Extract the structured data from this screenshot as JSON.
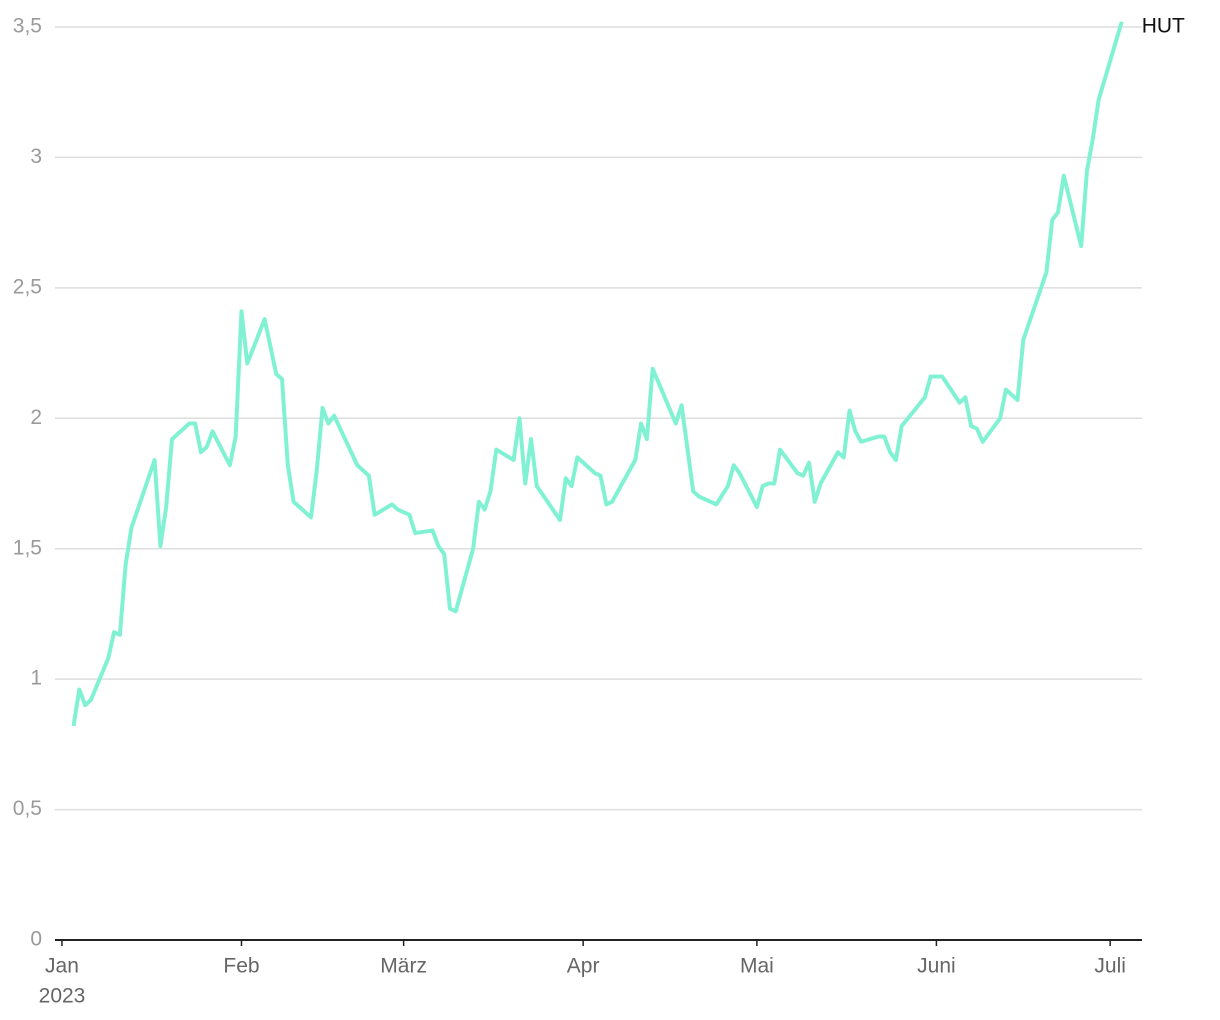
{
  "chart_data": {
    "type": "line",
    "x": [
      2,
      3,
      4,
      5,
      8,
      9,
      10,
      11,
      12,
      16,
      17,
      18,
      19,
      22,
      23,
      24,
      25,
      26,
      29,
      30,
      31,
      32,
      35,
      37,
      38,
      39,
      40,
      43,
      44,
      45,
      46,
      47,
      51,
      53,
      54,
      57,
      58,
      60,
      61,
      64,
      65,
      66,
      67,
      68,
      71,
      72,
      73,
      74,
      75,
      78,
      79,
      80,
      81,
      82,
      86,
      87,
      88,
      89,
      92,
      93,
      94,
      95,
      99,
      100,
      101,
      102,
      106,
      107,
      109,
      110,
      113,
      115,
      116,
      117,
      120,
      121,
      122,
      123,
      124,
      127,
      128,
      129,
      130,
      131,
      134,
      135,
      136,
      137,
      138,
      141,
      142,
      143,
      144,
      145,
      149,
      150,
      152,
      155,
      156,
      157,
      158,
      159,
      162,
      163,
      165,
      166,
      170,
      171,
      172,
      173,
      176,
      177,
      178,
      179,
      183
    ],
    "series": [
      {
        "name": "HUT",
        "color": "#80f2d3",
        "values": [
          0.82,
          0.96,
          0.9,
          0.92,
          1.08,
          1.18,
          1.17,
          1.44,
          1.58,
          1.84,
          1.51,
          1.66,
          1.92,
          1.98,
          1.98,
          1.87,
          1.89,
          1.95,
          1.82,
          1.93,
          2.41,
          2.21,
          2.38,
          2.17,
          2.15,
          1.82,
          1.68,
          1.62,
          1.8,
          2.04,
          1.98,
          2.01,
          1.82,
          1.78,
          1.63,
          1.67,
          1.65,
          1.63,
          1.56,
          1.57,
          1.51,
          1.48,
          1.27,
          1.26,
          1.5,
          1.68,
          1.65,
          1.72,
          1.88,
          1.84,
          2.0,
          1.75,
          1.92,
          1.74,
          1.61,
          1.77,
          1.74,
          1.85,
          1.79,
          1.78,
          1.67,
          1.68,
          1.84,
          1.98,
          1.92,
          2.19,
          1.98,
          2.05,
          1.72,
          1.7,
          1.67,
          1.74,
          1.82,
          1.79,
          1.66,
          1.74,
          1.75,
          1.75,
          1.88,
          1.79,
          1.78,
          1.83,
          1.68,
          1.75,
          1.87,
          1.85,
          2.03,
          1.95,
          1.91,
          1.93,
          1.93,
          1.87,
          1.84,
          1.97,
          2.08,
          2.16,
          2.16,
          2.06,
          2.08,
          1.97,
          1.96,
          1.91,
          2.0,
          2.11,
          2.07,
          2.3,
          2.56,
          2.76,
          2.79,
          2.93,
          2.66,
          2.95,
          3.07,
          3.22,
          3.52
        ]
      }
    ],
    "xlim": [
      -1.2,
      186.5
    ],
    "xticks": [
      {
        "value": 0,
        "label": "Jan"
      },
      {
        "value": 31,
        "label": "Feb"
      },
      {
        "value": 59,
        "label": "März"
      },
      {
        "value": 90,
        "label": "Apr"
      },
      {
        "value": 120,
        "label": "Mai"
      },
      {
        "value": 151,
        "label": "Juni"
      },
      {
        "value": 181,
        "label": "Juli"
      }
    ],
    "xtick_sublabel": "2023",
    "ylim": [
      0,
      3.5
    ],
    "yticks": [
      0,
      {
        "value": 0.5,
        "label": "0,5"
      },
      1,
      {
        "value": 1.5,
        "label": "1,5"
      },
      2,
      {
        "value": 2.5,
        "label": "2,5"
      },
      3,
      {
        "value": 3.5,
        "label": "3,5"
      }
    ],
    "grid": true
  }
}
